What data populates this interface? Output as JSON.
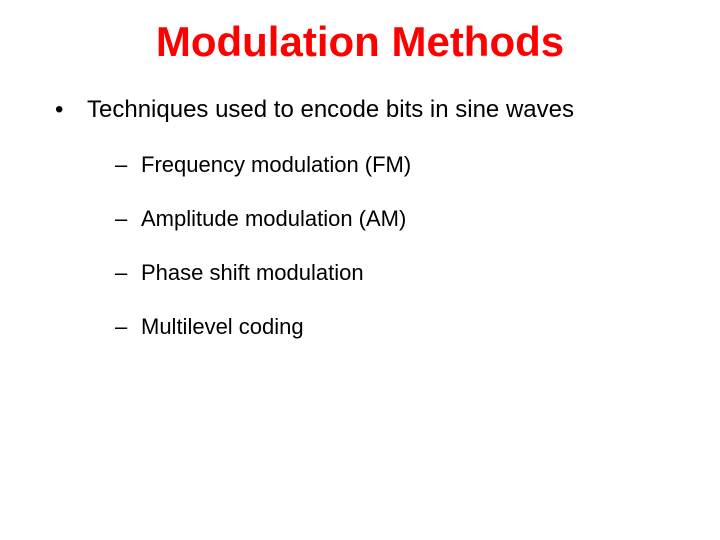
{
  "slide": {
    "title": "Modulation Methods",
    "title_color": "#ff0000",
    "title_fontsize": 42,
    "body_fontsize": 24,
    "sub_fontsize": 22,
    "text_color": "#000000",
    "background_color": "#ffffff",
    "bullets": [
      {
        "level": 1,
        "marker": "•",
        "text": "Techniques used to encode bits in sine waves"
      },
      {
        "level": 2,
        "marker": "–",
        "text": "Frequency modulation (FM)"
      },
      {
        "level": 2,
        "marker": "–",
        "text": "Amplitude modulation (AM)"
      },
      {
        "level": 2,
        "marker": "–",
        "text": "Phase shift modulation"
      },
      {
        "level": 2,
        "marker": "–",
        "text": "Multilevel coding"
      }
    ]
  }
}
